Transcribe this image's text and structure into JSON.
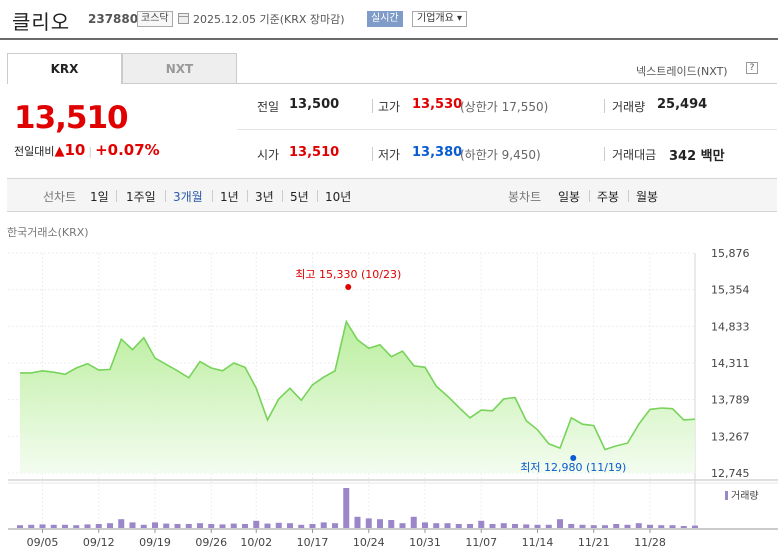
{
  "header": {
    "name": "클리오",
    "code": "237880",
    "market": "코스닥",
    "base_date": "2025.12.05  기준(KRX 장마감)",
    "realtime_label": "실시간",
    "company_label": "기업개요 ▾"
  },
  "tabs": [
    {
      "label": "KRX"
    },
    {
      "label": "NXT"
    }
  ],
  "nxt_link": "넥스트레이드(NXT)",
  "nxt_help": "?",
  "price": {
    "current": "13,510",
    "change_label": "전일대비",
    "change_arrow": "▲",
    "change": "10",
    "change_pct": "+0.07%"
  },
  "quote": {
    "prev_label": "전일",
    "prev": "13,500",
    "high_label": "고가",
    "high": "13,530",
    "upper_limit": "(상한가 17,550)",
    "volume_label": "거래량",
    "volume": "25,494",
    "open_label": "시가",
    "open": "13,510",
    "low_label": "저가",
    "low": "13,380",
    "lower_limit": "(하한가 9,450)",
    "amount_label": "거래대금",
    "amount": "342 백만"
  },
  "period_bar": {
    "line_label": "선차트",
    "line_opts": [
      "1일",
      "1주일",
      "3개월",
      "1년",
      "3년",
      "5년",
      "10년"
    ],
    "active": "3개월",
    "candle_label": "봉차트",
    "candle_opts": [
      "일봉",
      "주봉",
      "월봉"
    ]
  },
  "source_label": "한국거래소(KRX)",
  "colors": {
    "up": "#e00000",
    "down": "#0a5bd1",
    "line": "#77d35a",
    "volume": "#9a86c9"
  },
  "chart_data": {
    "type": "area",
    "y_ticks": [
      "15,876",
      "15,354",
      "14,833",
      "14,311",
      "13,789",
      "13,267",
      "12,745"
    ],
    "ylim": [
      12745,
      15876
    ],
    "x_ticks": [
      "09/05",
      "09/12",
      "09/19",
      "09/26",
      "10/02",
      "10/17",
      "10/24",
      "10/31",
      "11/07",
      "11/14",
      "11/21",
      "11/28"
    ],
    "x_tick_index": [
      2,
      7,
      12,
      17,
      21,
      26,
      31,
      36,
      41,
      46,
      51,
      56
    ],
    "high_label": "최고 15,330 (10/23)",
    "high_index": 29,
    "high_value": 15330,
    "low_label": "최저 12,980 (11/19)",
    "low_index": 49,
    "low_value": 12980,
    "volume_legend": "거래량",
    "prices": [
      14170,
      14170,
      14200,
      14180,
      14150,
      14240,
      14300,
      14210,
      14220,
      14650,
      14500,
      14670,
      14380,
      14290,
      14200,
      14100,
      14330,
      14240,
      14200,
      14310,
      14250,
      13950,
      13500,
      13800,
      13950,
      13780,
      14000,
      14110,
      14200,
      14900,
      14640,
      14520,
      14570,
      14400,
      14480,
      14270,
      14250,
      13980,
      13840,
      13680,
      13530,
      13640,
      13630,
      13800,
      13820,
      13490,
      13360,
      13160,
      13100,
      13530,
      13440,
      13420,
      13080,
      13130,
      13170,
      13440,
      13650,
      13670,
      13660,
      13500,
      13510
    ],
    "volumes": [
      7,
      8,
      9,
      8,
      8,
      7,
      9,
      10,
      12,
      22,
      14,
      8,
      14,
      11,
      10,
      10,
      12,
      10,
      9,
      11,
      10,
      18,
      11,
      13,
      12,
      8,
      10,
      14,
      12,
      100,
      28,
      24,
      22,
      20,
      12,
      28,
      14,
      12,
      12,
      10,
      10,
      18,
      10,
      12,
      10,
      9,
      8,
      8,
      22,
      10,
      8,
      7,
      7,
      10,
      8,
      12,
      8,
      7,
      7,
      5,
      6
    ]
  }
}
